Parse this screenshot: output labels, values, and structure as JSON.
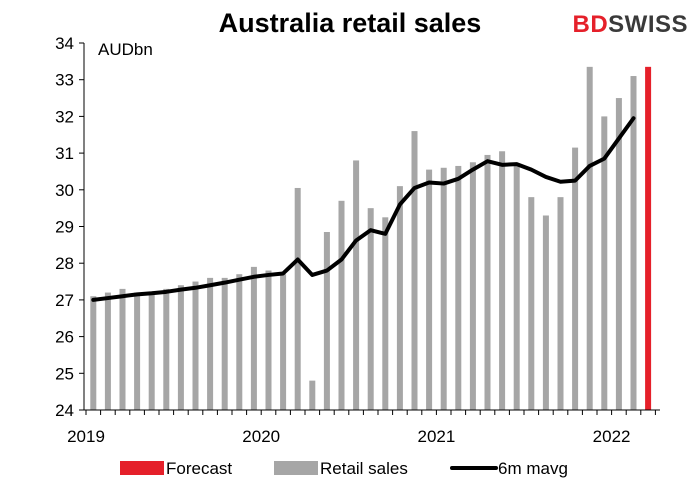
{
  "title": "Australia retail sales",
  "logo": {
    "part1": "BD",
    "part2": "SWISS"
  },
  "chart_data": {
    "type": "bar",
    "unit_label": "AUDbn",
    "ylim": [
      24,
      34
    ],
    "yticks": [
      24,
      25,
      26,
      27,
      28,
      29,
      30,
      31,
      32,
      33,
      34
    ],
    "xticks": [
      "2019",
      "2020",
      "2021",
      "2022"
    ],
    "grid": false,
    "legend_position": "bottom",
    "colors": {
      "forecast": "#e5202a",
      "retail": "#a6a6a6",
      "mavg": "#000000"
    },
    "series": [
      {
        "name": "Retail sales",
        "type": "bar",
        "start": "2019-01",
        "values": [
          27.1,
          27.2,
          27.3,
          27.2,
          27.2,
          27.3,
          27.4,
          27.5,
          27.6,
          27.6,
          27.7,
          27.9,
          27.8,
          27.7,
          30.05,
          24.8,
          28.85,
          29.7,
          30.8,
          29.5,
          29.25,
          30.1,
          31.6,
          30.55,
          30.6,
          30.65,
          30.75,
          30.95,
          31.05,
          30.7,
          29.8,
          29.3,
          29.8,
          31.15,
          33.35,
          32.0,
          32.5,
          33.1
        ]
      },
      {
        "name": "Forecast",
        "type": "bar",
        "values": [
          {
            "date": "2022-03",
            "value": 33.35
          }
        ]
      },
      {
        "name": "6m mavg",
        "type": "line",
        "start": "2019-01",
        "values": [
          27.0,
          27.05,
          27.1,
          27.15,
          27.18,
          27.22,
          27.28,
          27.33,
          27.4,
          27.47,
          27.55,
          27.63,
          27.68,
          27.72,
          28.1,
          27.68,
          27.8,
          28.1,
          28.62,
          28.9,
          28.8,
          29.6,
          30.05,
          30.2,
          30.17,
          30.3,
          30.55,
          30.78,
          30.68,
          30.7,
          30.55,
          30.35,
          30.22,
          30.25,
          30.65,
          30.85,
          31.4,
          31.95
        ]
      }
    ]
  }
}
